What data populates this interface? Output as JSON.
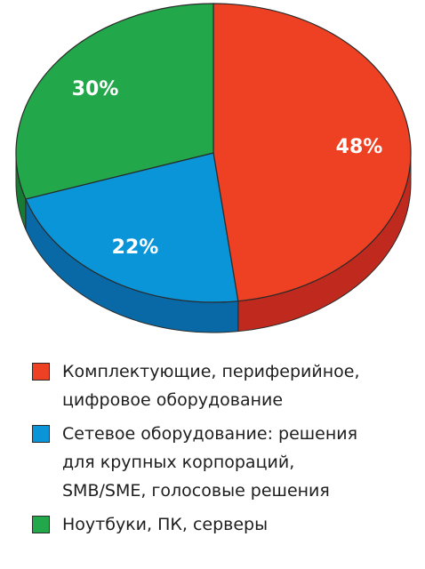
{
  "chart_data": {
    "type": "pie",
    "slices": [
      {
        "label": "Комплектующие, периферийное,\nцифровое оборудование",
        "value": 48,
        "value_label": "48%",
        "color": "#ee4023",
        "side_color": "#c0291d"
      },
      {
        "label": "Сетевое оборудование: решения\nдля крупных корпораций,\nSMB/SME, голосовые решения",
        "value": 22,
        "value_label": "22%",
        "color": "#0a95d8",
        "side_color": "#0869a6"
      },
      {
        "label": "Ноутбуки, ПК, серверы",
        "value": 30,
        "value_label": "30%",
        "color": "#22a74a",
        "side_color": "#167c33"
      }
    ],
    "start_angle": "12 o'clock",
    "direction": "clockwise",
    "style": "3d",
    "legend_position": "bottom"
  }
}
